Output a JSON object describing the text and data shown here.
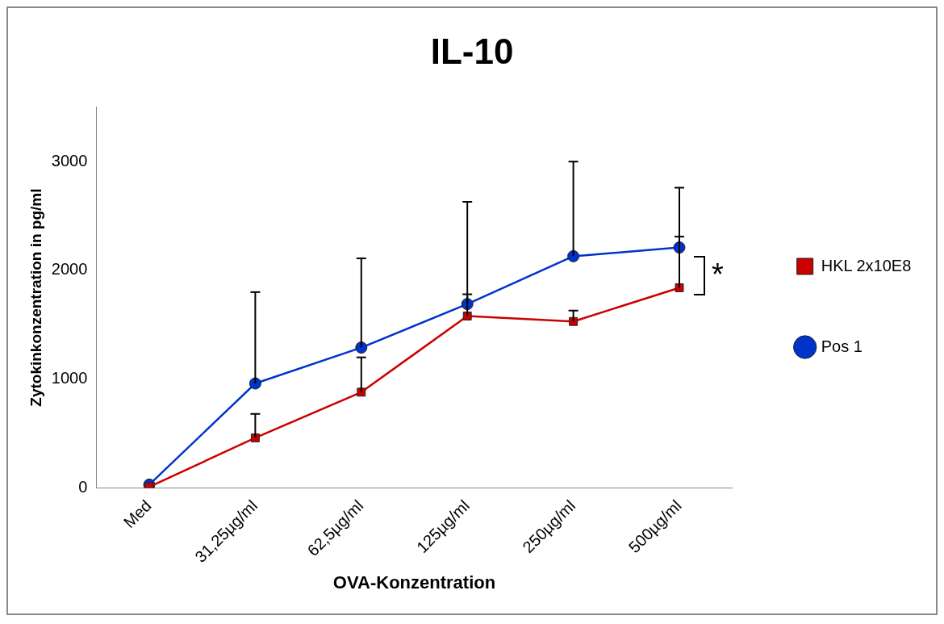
{
  "chart_data": {
    "type": "line",
    "title": "IL-10",
    "xlabel": "OVA-Konzentration",
    "ylabel": "Zytokinkonzentration in pg/ml",
    "categories": [
      "Med",
      "31,25µg/ml",
      "62,5µg/ml",
      "125µg/ml",
      "250µg/ml",
      "500µg/ml"
    ],
    "series": [
      {
        "name": "Pos 1",
        "color": "#0033cc",
        "values": [
          30,
          960,
          1290,
          1690,
          2130,
          2210
        ],
        "errors": [
          null,
          [
            960,
            1800
          ],
          [
            1290,
            2110
          ],
          [
            1690,
            2630
          ],
          [
            2130,
            3000
          ],
          [
            2210,
            2760
          ]
        ],
        "marker": "circle"
      },
      {
        "name": "HKL 2x10E8",
        "color": "#cc0000",
        "values": [
          10,
          460,
          880,
          1580,
          1530,
          1840
        ],
        "errors": [
          null,
          [
            460,
            680
          ],
          [
            880,
            1200
          ],
          [
            1580,
            1780
          ],
          [
            1530,
            1630
          ],
          [
            1840,
            2310
          ]
        ],
        "marker": "square"
      }
    ],
    "ylim": [
      0,
      3500
    ],
    "yticks": [
      0,
      1000,
      2000,
      3000
    ],
    "grid": false,
    "legend": "right",
    "line_style": "solid",
    "annotations": [
      "*"
    ]
  }
}
